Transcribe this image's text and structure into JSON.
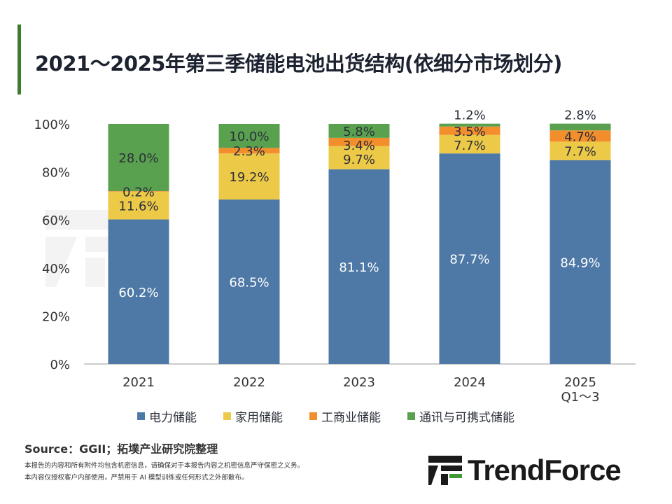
{
  "header": {
    "title": "2021～2025年第三季储能电池出货结构(依细分市场划分)"
  },
  "chart_data": {
    "type": "bar",
    "stacked": true,
    "title": "2021～2025年第三季储能电池出货结构(依细分市场划分)",
    "categories": [
      "2021",
      "2022",
      "2023",
      "2024",
      "2025\nQ1～3"
    ],
    "ylim": [
      0,
      100
    ],
    "yticks": [
      "0%",
      "20%",
      "40%",
      "60%",
      "80%",
      "100%"
    ],
    "grid": false,
    "legend_position": "bottom",
    "series": [
      {
        "name": "电力储能",
        "color": "#4e79a7",
        "values": [
          60.2,
          68.5,
          81.1,
          87.7,
          84.9
        ]
      },
      {
        "name": "家用储能",
        "color": "#edc948",
        "values": [
          11.6,
          19.2,
          9.7,
          7.7,
          7.7
        ]
      },
      {
        "name": "工商业储能",
        "color": "#f28e2b",
        "values": [
          0.2,
          2.3,
          3.4,
          3.5,
          4.7
        ]
      },
      {
        "name": "通讯与可携式储能",
        "color": "#59a14f",
        "values": [
          28.0,
          10.0,
          5.8,
          1.2,
          2.8
        ]
      }
    ]
  },
  "footer": {
    "source": "Source：GGII；拓墣产业研究院整理",
    "note1": "本报告的内容和所有附件均包含机密信息，请确保对于本报告内容之机密信息严守保密之义务。",
    "note2": "本内容仅授权客户内部使用，严禁用于 AI 模型训练或任何形式之外部散布。",
    "logo": "TrendForce",
    "watermark": "TrendForce"
  }
}
